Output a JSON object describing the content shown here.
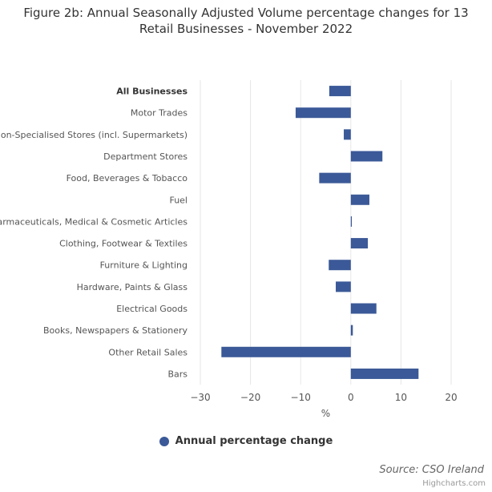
{
  "title": {
    "line1": "Figure 2b: Annual Seasonally Adjusted Volume percentage changes for 13",
    "line2": "Retail Businesses - November 2022"
  },
  "legend": {
    "label": "Annual percentage change"
  },
  "credits": {
    "source": "Source: CSO Ireland",
    "engine": "Highcharts.com"
  },
  "colors": {
    "bar": "#3b5998",
    "grid": "#e6e6e6",
    "text": "#333333"
  },
  "chart_data": {
    "type": "bar",
    "orientation": "horizontal",
    "categories": [
      "All Businesses",
      "Motor Trades",
      "Non-Specialised Stores (incl. Supermarkets)",
      "Department Stores",
      "Food, Beverages & Tobacco",
      "Fuel",
      "Pharmaceuticals, Medical & Cosmetic Articles",
      "Clothing, Footwear & Textiles",
      "Furniture & Lighting",
      "Hardware, Paints & Glass",
      "Electrical Goods",
      "Books, Newspapers & Stationery",
      "Other Retail Sales",
      "Bars"
    ],
    "series": [
      {
        "name": "Annual percentage change",
        "values": [
          -4.3,
          -11.0,
          -1.4,
          6.3,
          -6.3,
          3.7,
          0.2,
          3.4,
          -4.4,
          -3.0,
          5.1,
          0.4,
          -25.8,
          13.5
        ]
      }
    ],
    "xlabel": "%",
    "xlim": [
      -30,
      20
    ],
    "ticks": [
      -30,
      -20,
      -10,
      0,
      10,
      20
    ],
    "bold_categories": [
      "All Businesses"
    ],
    "grid": true,
    "legend_position": "bottom-center"
  }
}
